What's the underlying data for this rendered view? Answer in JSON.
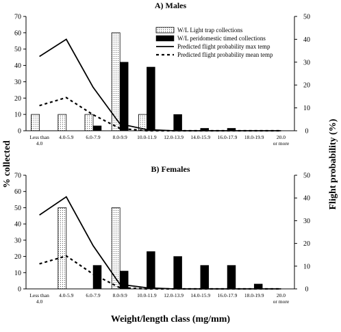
{
  "chart_data": {
    "type": "bar",
    "shared": {
      "categories": [
        "Less than 4.0",
        "4.0-5.9",
        "6.0-7.9",
        "8.0-9.9",
        "10.0-11.9",
        "12.0-13.9",
        "14.0-15.9",
        "16.0-17.9",
        "18.0-19.9",
        "20.0 or more"
      ],
      "xlabel": "Weight/length class (mg/mm)",
      "ylabel_left": "% collected",
      "ylabel_right": "Flight probability (%)",
      "ylim_left": [
        0,
        70
      ],
      "ylim_right": [
        0,
        50
      ],
      "yticks_left": [
        0,
        10,
        20,
        30,
        40,
        50,
        60,
        70
      ],
      "yticks_right": [
        0,
        10,
        20,
        30,
        40,
        50
      ],
      "legend": {
        "position": "top-right",
        "light_trap_label": "W/L Light trap collections",
        "peridomestic_label": "W/L peridomestic timed collections",
        "max_temp_label": "Predicted flight probability max temp",
        "mean_temp_label": "Predicted flight probability mean temp"
      }
    },
    "panels": [
      {
        "title": "A) Males",
        "series": [
          {
            "name": "W/L Light trap collections",
            "kind": "bar",
            "axis": "left",
            "style": "dotted-white",
            "values": [
              10,
              10,
              10,
              60,
              10,
              0,
              0,
              0,
              0,
              0
            ]
          },
          {
            "name": "W/L peridomestic timed collections",
            "kind": "bar",
            "axis": "left",
            "style": "solid-black",
            "values": [
              0,
              0,
              3,
              42,
              39,
              10,
              1.5,
              1.5,
              0,
              0
            ]
          },
          {
            "name": "Predicted flight probability max temp",
            "kind": "line",
            "axis": "right",
            "style": "solid",
            "values": [
              32.5,
              40,
              19,
              3,
              0.5,
              0,
              0,
              0,
              0,
              0
            ]
          },
          {
            "name": "Predicted flight probability mean temp",
            "kind": "line",
            "axis": "right",
            "style": "dashed",
            "values": [
              11,
              14.5,
              7,
              1,
              0,
              0,
              0,
              0,
              0,
              0
            ]
          }
        ]
      },
      {
        "title": "B) Females",
        "series": [
          {
            "name": "W/L Light trap collections",
            "kind": "bar",
            "axis": "left",
            "style": "dotted-white",
            "values": [
              0,
              50,
              0,
              50,
              0,
              0,
              0,
              0,
              0,
              0
            ]
          },
          {
            "name": "W/L peridomestic timed collections",
            "kind": "bar",
            "axis": "left",
            "style": "solid-black",
            "values": [
              0,
              0,
              14.5,
              11,
              23,
              20,
              14.5,
              14.5,
              3,
              0
            ]
          },
          {
            "name": "Predicted flight probability max temp",
            "kind": "line",
            "axis": "right",
            "style": "solid",
            "values": [
              32.5,
              40.5,
              19,
              2,
              0.5,
              0,
              0,
              0,
              0,
              0
            ]
          },
          {
            "name": "Predicted flight probability mean temp",
            "kind": "line",
            "axis": "right",
            "style": "dashed",
            "values": [
              11,
              14.5,
              6.5,
              0.5,
              0,
              0,
              0,
              0,
              0,
              0
            ]
          }
        ]
      }
    ]
  }
}
